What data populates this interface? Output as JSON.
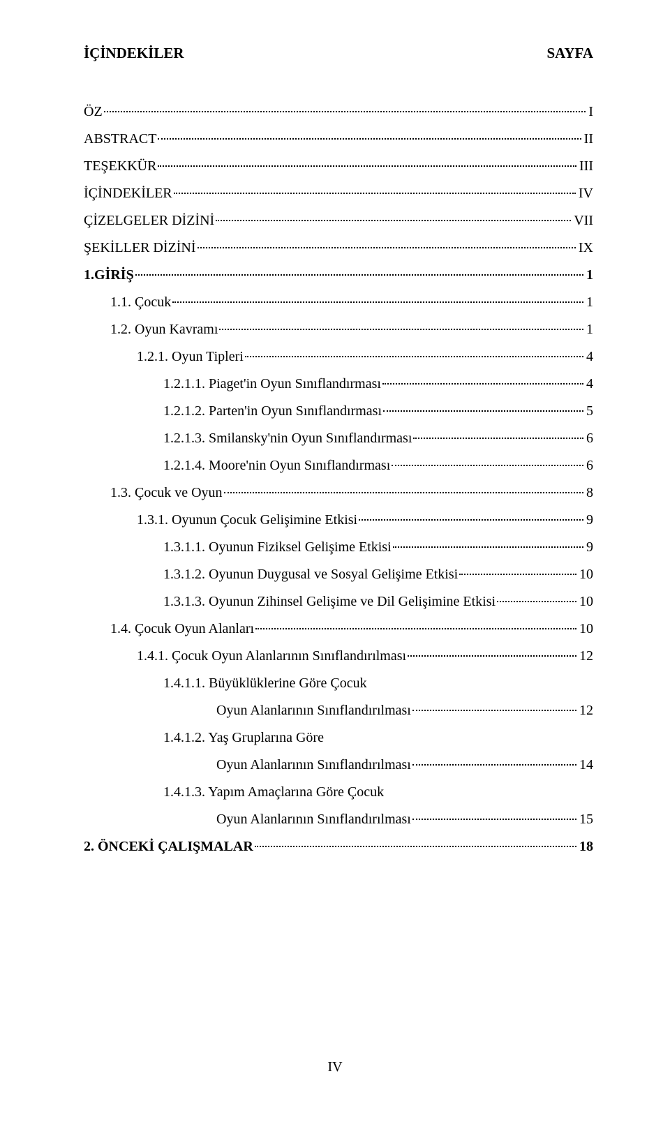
{
  "header": {
    "left": "İÇİNDEKİLER",
    "right": "SAYFA"
  },
  "footer": "IV",
  "entries": [
    {
      "label": "ÖZ",
      "page": "I",
      "indent": 0,
      "bold": false
    },
    {
      "label": "ABSTRACT",
      "page": "II",
      "indent": 0,
      "bold": false
    },
    {
      "label": "TEŞEKKÜR",
      "page": "III",
      "indent": 0,
      "bold": false
    },
    {
      "label": "İÇİNDEKİLER",
      "page": "IV",
      "indent": 0,
      "bold": false
    },
    {
      "label": "ÇİZELGELER DİZİNİ",
      "page": "VII",
      "indent": 0,
      "bold": false
    },
    {
      "label": "ŞEKİLLER DİZİNİ",
      "page": "IX",
      "indent": 0,
      "bold": false
    },
    {
      "label": "1.GİRİŞ",
      "page": "1",
      "indent": 0,
      "bold": true
    },
    {
      "label": "1.1. Çocuk",
      "page": "1",
      "indent": 1,
      "bold": false
    },
    {
      "label": "1.2. Oyun Kavramı",
      "page": "1",
      "indent": 1,
      "bold": false
    },
    {
      "label": "1.2.1. Oyun Tipleri",
      "page": "4",
      "indent": 2,
      "bold": false
    },
    {
      "label": "1.2.1.1. Piaget'in Oyun Sınıflandırması",
      "page": "4",
      "indent": 3,
      "bold": false
    },
    {
      "label": "1.2.1.2. Parten'in Oyun Sınıflandırması",
      "page": "5",
      "indent": 3,
      "bold": false
    },
    {
      "label": "1.2.1.3. Smilansky'nin Oyun Sınıflandırması",
      "page": "6",
      "indent": 3,
      "bold": false
    },
    {
      "label": "1.2.1.4. Moore'nin Oyun Sınıflandırması",
      "page": "6",
      "indent": 3,
      "bold": false
    },
    {
      "label": "1.3. Çocuk ve Oyun",
      "page": "8",
      "indent": 1,
      "bold": false
    },
    {
      "label": "1.3.1. Oyunun Çocuk Gelişimine Etkisi",
      "page": "9",
      "indent": 2,
      "bold": false
    },
    {
      "label": "1.3.1.1. Oyunun Fiziksel Gelişime Etkisi",
      "page": "9",
      "indent": 3,
      "bold": false
    },
    {
      "label": "1.3.1.2. Oyunun Duygusal ve Sosyal Gelişime Etkisi",
      "page": "10",
      "indent": 3,
      "bold": false
    },
    {
      "label": "1.3.1.3. Oyunun Zihinsel Gelişime ve Dil Gelişimine Etkisi",
      "page": "10",
      "indent": 3,
      "bold": false
    },
    {
      "label": "1.4. Çocuk Oyun Alanları",
      "page": "10",
      "indent": 1,
      "bold": false
    },
    {
      "label": "1.4.1. Çocuk Oyun Alanlarının Sınıflandırılması",
      "page": "12",
      "indent": 2,
      "bold": false
    },
    {
      "label": "1.4.1.1. Büyüklüklerine Göre Çocuk",
      "page": "",
      "indent": 3,
      "bold": false,
      "noleader": true
    },
    {
      "label": "Oyun Alanlarının Sınıflandırılması",
      "page": "12",
      "indent": 5,
      "bold": false
    },
    {
      "label": "1.4.1.2. Yaş Gruplarına Göre",
      "page": "",
      "indent": 3,
      "bold": false,
      "noleader": true
    },
    {
      "label": "Oyun Alanlarının Sınıflandırılması",
      "page": "14",
      "indent": 5,
      "bold": false
    },
    {
      "label": "1.4.1.3. Yapım Amaçlarına Göre Çocuk",
      "page": "",
      "indent": 3,
      "bold": false,
      "noleader": true
    },
    {
      "label": "Oyun Alanlarının Sınıflandırılması",
      "page": "15",
      "indent": 5,
      "bold": false
    },
    {
      "label": "2. ÖNCEKİ ÇALIŞMALAR",
      "page": "18",
      "indent": 0,
      "bold": true
    }
  ]
}
